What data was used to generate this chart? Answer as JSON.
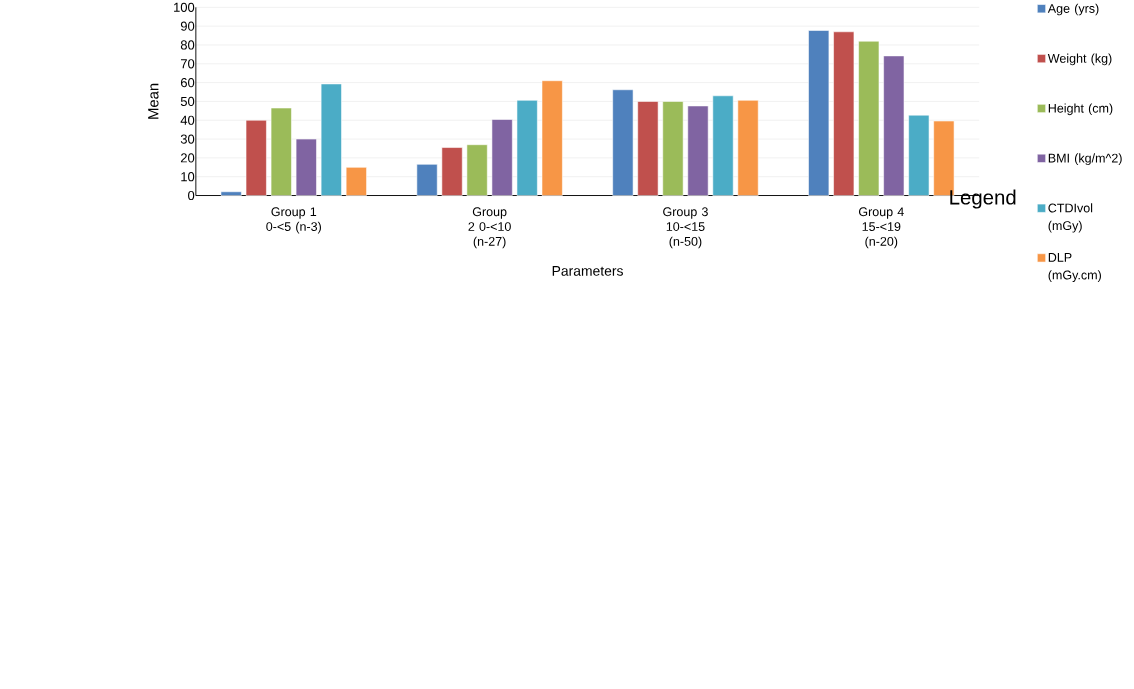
{
  "chart_data": {
    "type": "bar",
    "xlabel": "Parameters",
    "ylabel": "Mean",
    "legend_title": "Legend",
    "categories": [
      "Group 1 0-<5 (n-3)",
      "Group 2 0-<10 (n-27)",
      "Group 3 10-<15 (n-50)",
      "Group 4 15-<19 (n-20)"
    ],
    "series": [
      {
        "name": "Age (yrs)",
        "color": "#4f81bd",
        "values": [
          2,
          16.6,
          56.2,
          87.7
        ]
      },
      {
        "name": "Weight (kg)",
        "color": "#c0504d",
        "values": [
          40,
          25.5,
          50,
          87
        ]
      },
      {
        "name": "Height (cm)",
        "color": "#9bbb59",
        "values": [
          46.5,
          27,
          50,
          82
        ]
      },
      {
        "name": "BMI (kg/m^2)",
        "color": "#8064a2",
        "values": [
          30,
          40.4,
          47.6,
          74.2
        ]
      },
      {
        "name": "CTDIvol (mGy)",
        "color": "#4bacc6",
        "values": [
          59.3,
          50.6,
          53,
          42.7
        ]
      },
      {
        "name": "DLP (mGy.cm)",
        "color": "#f79646",
        "values": [
          15,
          61,
          50.6,
          39.6
        ]
      }
    ],
    "ylim": [
      0,
      100
    ],
    "yticks": [
      0,
      10,
      20,
      30,
      40,
      50,
      60,
      70,
      80,
      90,
      100
    ],
    "grid": "y",
    "legend": "right"
  }
}
